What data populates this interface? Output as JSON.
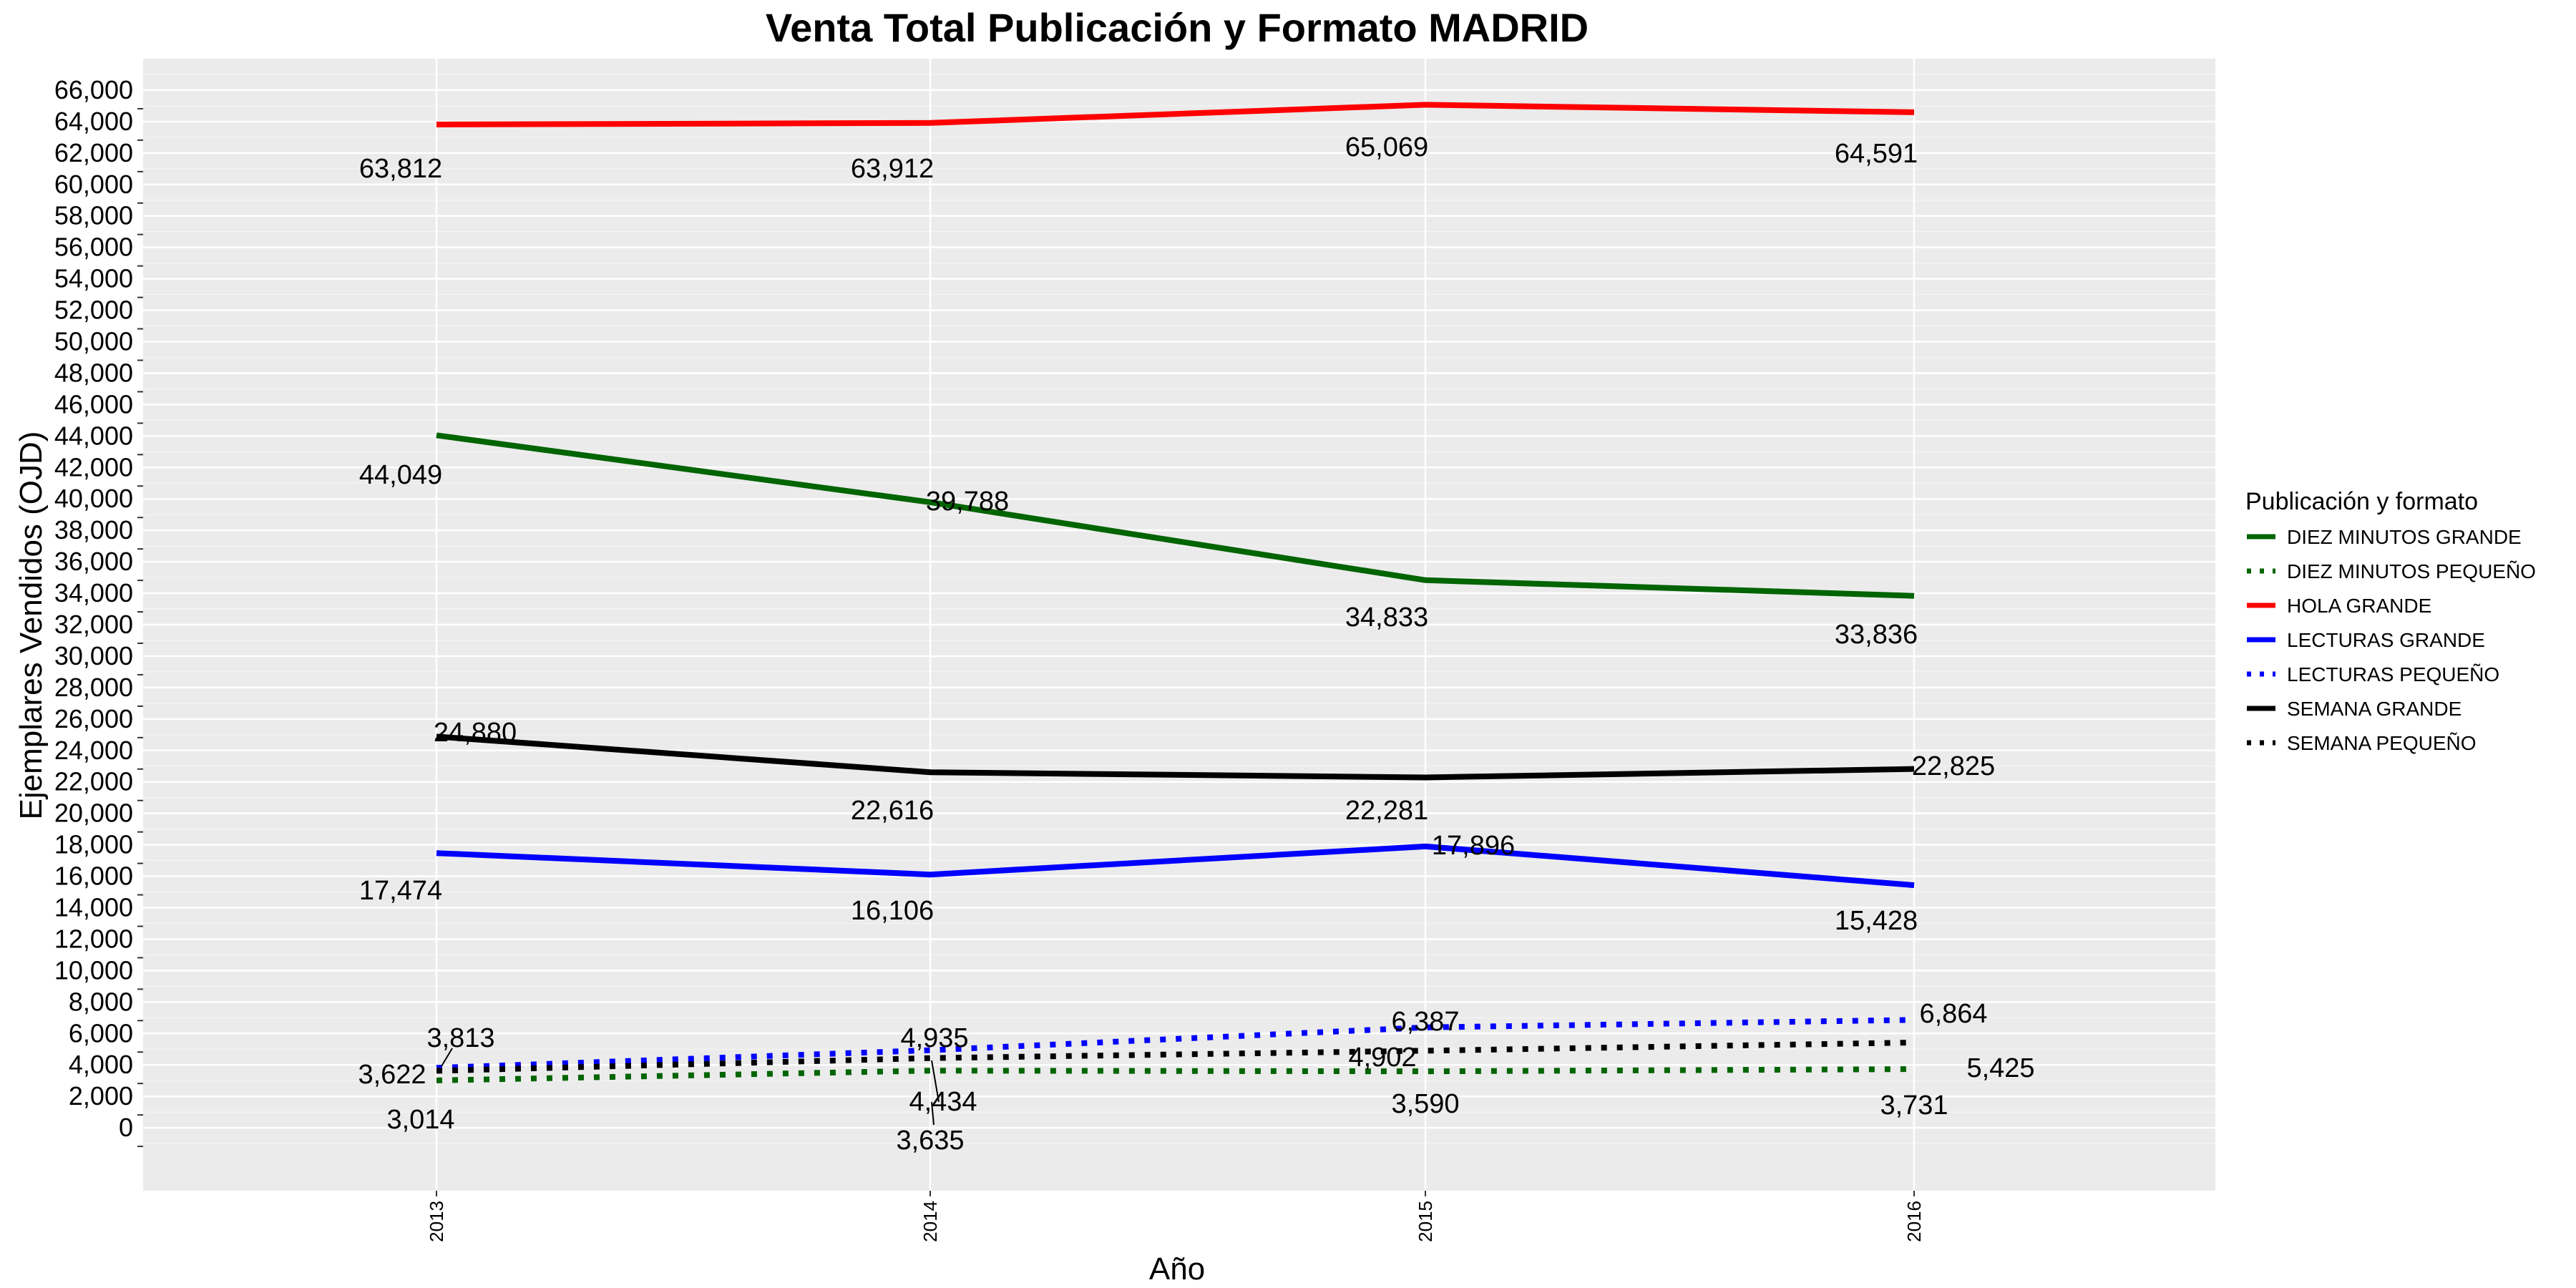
{
  "chart_data": {
    "type": "line",
    "title": "Venta Total Publicación y Formato  MADRID",
    "xlabel": "Año",
    "ylabel": "Ejemplares Vendidos (OJD)",
    "categories": [
      "2013",
      "2014",
      "2015",
      "2016"
    ],
    "ylim": [
      -4000,
      68000
    ],
    "yticks": [
      0,
      2000,
      4000,
      6000,
      8000,
      10000,
      12000,
      14000,
      16000,
      18000,
      20000,
      22000,
      24000,
      26000,
      28000,
      30000,
      32000,
      34000,
      36000,
      38000,
      40000,
      42000,
      44000,
      46000,
      48000,
      50000,
      52000,
      54000,
      56000,
      58000,
      60000,
      62000,
      64000,
      66000
    ],
    "ytick_labels": [
      "0",
      "2,000",
      "4,000",
      "6,000",
      "8,000",
      "10,000",
      "12,000",
      "14,000",
      "16,000",
      "18,000",
      "20,000",
      "22,000",
      "24,000",
      "26,000",
      "28,000",
      "30,000",
      "32,000",
      "34,000",
      "36,000",
      "38,000",
      "40,000",
      "42,000",
      "44,000",
      "46,000",
      "48,000",
      "50,000",
      "52,000",
      "54,000",
      "56,000",
      "58,000",
      "60,000",
      "62,000",
      "64,000",
      "66,000"
    ],
    "grid": true,
    "legend": {
      "title": "Publicación y formato",
      "position": "right"
    },
    "series": [
      {
        "name": "DIEZ MINUTOS GRANDE",
        "color": "#006400",
        "dash": "solid",
        "values": [
          44049,
          39788,
          34833,
          33836
        ],
        "labels": [
          "44,049",
          "39,788",
          "34,833",
          "33,836"
        ]
      },
      {
        "name": "DIEZ MINUTOS PEQUEÑO",
        "color": "#006400",
        "dash": "dotted",
        "values": [
          3014,
          3635,
          3590,
          3731
        ],
        "labels": [
          "3,014",
          "3,635",
          "3,590",
          "3,731"
        ]
      },
      {
        "name": "HOLA GRANDE",
        "color": "#ff0000",
        "dash": "solid",
        "values": [
          63812,
          63912,
          65069,
          64591
        ],
        "labels": [
          "63,812",
          "63,912",
          "65,069",
          "64,591"
        ]
      },
      {
        "name": "LECTURAS GRANDE",
        "color": "#0000ff",
        "dash": "solid",
        "values": [
          17474,
          16106,
          17896,
          15428
        ],
        "labels": [
          "17,474",
          "16,106",
          "17,896",
          "15,428"
        ]
      },
      {
        "name": "LECTURAS PEQUEÑO",
        "color": "#0000ff",
        "dash": "dotted",
        "values": [
          3813,
          4935,
          6387,
          6864
        ],
        "labels": [
          "3,813",
          "4,935",
          "6,387",
          "6,864"
        ]
      },
      {
        "name": "SEMANA GRANDE",
        "color": "#000000",
        "dash": "solid",
        "values": [
          24880,
          22616,
          22281,
          22825
        ],
        "labels": [
          "24,880",
          "22,616",
          "22,281",
          "22,825"
        ]
      },
      {
        "name": "SEMANA PEQUEÑO",
        "color": "#000000",
        "dash": "dotted",
        "values": [
          3622,
          4434,
          4902,
          5425
        ],
        "labels": [
          "3,622",
          "4,434",
          "4,902",
          "5,425"
        ]
      }
    ]
  }
}
